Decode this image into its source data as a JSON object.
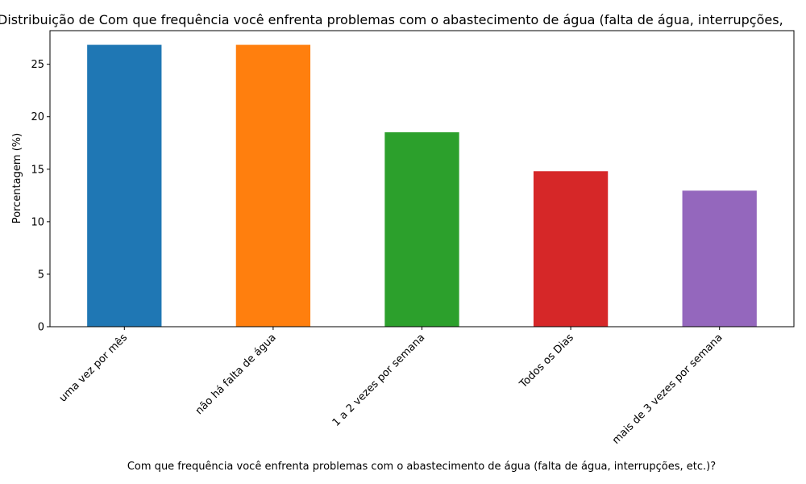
{
  "chart_data": {
    "type": "bar",
    "title": "Distribuição de Com que frequência você enfrenta problemas com o abastecimento de água (falta de água, interrupções,",
    "xlabel": "Com que frequência você enfrenta problemas com o abastecimento de água (falta de água, interrupções, etc.)?",
    "ylabel": "Porcentagem (%)",
    "categories": [
      "uma vez por mês",
      "não há falta de água",
      "1 a 2 vezes por semana",
      "Todos os Dias",
      "mais de 3 vezes por semana"
    ],
    "values": [
      26.85,
      26.85,
      18.52,
      14.81,
      12.96
    ],
    "colors": [
      "#1f77b4",
      "#ff7f0e",
      "#2ca02c",
      "#d62728",
      "#9467bd"
    ],
    "ylim": [
      0,
      28.2
    ],
    "yticks": [
      "0",
      "5",
      "10",
      "15",
      "20",
      "25"
    ],
    "grid": false,
    "legend": "none"
  }
}
